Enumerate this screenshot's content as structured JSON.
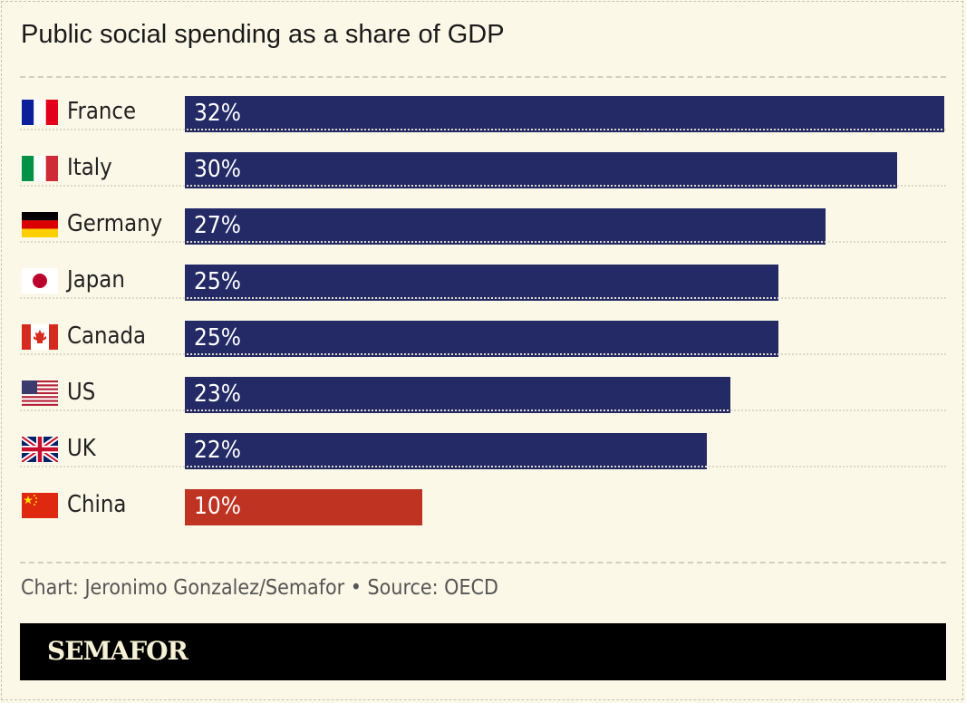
{
  "chart_data": {
    "type": "bar",
    "orientation": "horizontal",
    "title": "Public social spending as a share of GDP",
    "categories": [
      "France",
      "Italy",
      "Germany",
      "Japan",
      "Canada",
      "US",
      "UK",
      "China"
    ],
    "values": [
      32,
      30,
      27,
      25,
      25,
      23,
      22,
      10
    ],
    "value_labels": [
      "32%",
      "30%",
      "27%",
      "25%",
      "25%",
      "23%",
      "22%",
      "10%"
    ],
    "flags": [
      "france-flag",
      "italy-flag",
      "germany-flag",
      "japan-flag",
      "canada-flag",
      "us-flag",
      "uk-flag",
      "china-flag"
    ],
    "colors": [
      "#232a65",
      "#232a65",
      "#232a65",
      "#232a65",
      "#232a65",
      "#232a65",
      "#232a65",
      "#bf3322"
    ],
    "xlim": [
      0,
      32
    ],
    "grid": false
  },
  "source": "Chart: Jeronimo Gonzalez/Semafor • Source: OECD",
  "brand": "SEMAFOR"
}
